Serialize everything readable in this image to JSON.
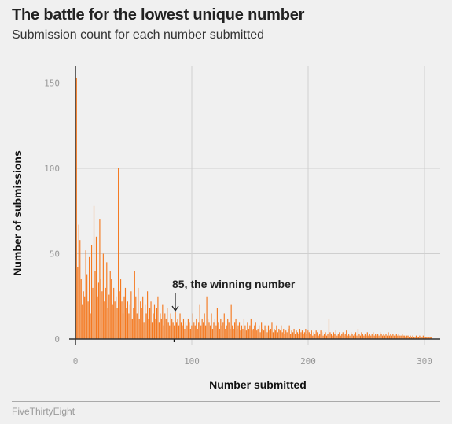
{
  "header": {
    "title": "The battle for the lowest unique number",
    "subtitle": "Submission count for each number submitted"
  },
  "footer": {
    "source": "FiveThirtyEight"
  },
  "colors": {
    "bar": "#f47920",
    "grid": "#cfcfcf",
    "highlight": "#111111"
  },
  "chart_data": {
    "type": "bar",
    "title": "The battle for the lowest unique number",
    "subtitle": "Submission count for each number submitted",
    "xlabel": "Number submitted",
    "ylabel": "Number of submissions",
    "xlim": [
      0,
      310
    ],
    "ylim": [
      0,
      160
    ],
    "xticks": [
      0,
      100,
      200,
      300
    ],
    "xtick_labels": [
      "0",
      "100",
      "200",
      "300"
    ],
    "yticks": [
      0,
      50,
      100,
      150
    ],
    "ytick_labels": [
      "0",
      "50",
      "100",
      "150"
    ],
    "grid": true,
    "highlight": {
      "x": 85,
      "label": "85, the winning number"
    },
    "x_start": 1,
    "values": [
      153,
      42,
      67,
      58,
      35,
      20,
      28,
      25,
      52,
      38,
      22,
      48,
      15,
      55,
      30,
      78,
      40,
      60,
      25,
      33,
      70,
      35,
      28,
      50,
      22,
      30,
      45,
      18,
      26,
      40,
      35,
      20,
      30,
      22,
      25,
      18,
      100,
      28,
      35,
      22,
      15,
      25,
      30,
      18,
      22,
      15,
      20,
      28,
      12,
      18,
      40,
      25,
      15,
      30,
      12,
      22,
      18,
      25,
      10,
      20,
      15,
      28,
      12,
      18,
      22,
      10,
      15,
      20,
      12,
      18,
      25,
      10,
      15,
      12,
      20,
      8,
      15,
      12,
      18,
      10,
      8,
      15,
      12,
      10,
      8,
      16,
      10,
      12,
      8,
      15,
      10,
      8,
      12,
      6,
      10,
      8,
      12,
      10,
      6,
      8,
      15,
      10,
      8,
      12,
      6,
      10,
      20,
      8,
      12,
      10,
      15,
      8,
      25,
      12,
      10,
      8,
      15,
      6,
      10,
      12,
      8,
      18,
      10,
      6,
      12,
      8,
      10,
      15,
      6,
      8,
      12,
      10,
      6,
      20,
      8,
      6,
      10,
      12,
      6,
      8,
      10,
      5,
      8,
      6,
      12,
      8,
      5,
      10,
      6,
      8,
      12,
      5,
      6,
      8,
      10,
      5,
      6,
      8,
      4,
      10,
      6,
      5,
      8,
      6,
      4,
      8,
      5,
      6,
      10,
      4,
      6,
      5,
      8,
      4,
      6,
      5,
      8,
      4,
      6,
      3,
      5,
      4,
      6,
      8,
      3,
      5,
      4,
      6,
      3,
      5,
      4,
      3,
      6,
      4,
      5,
      3,
      4,
      6,
      3,
      5,
      4,
      3,
      5,
      2,
      4,
      3,
      5,
      4,
      2,
      3,
      5,
      4,
      2,
      3,
      4,
      2,
      3,
      12,
      4,
      3,
      2,
      4,
      3,
      5,
      2,
      3,
      4,
      2,
      3,
      4,
      2,
      3,
      5,
      2,
      3,
      2,
      4,
      3,
      2,
      3,
      4,
      2,
      6,
      3,
      2,
      4,
      3,
      2,
      3,
      2,
      4,
      2,
      3,
      2,
      3,
      4,
      2,
      3,
      2,
      3,
      2,
      4,
      3,
      2,
      3,
      2,
      3,
      2,
      4,
      2,
      3,
      2,
      3,
      2,
      2,
      3,
      2,
      3,
      2,
      2,
      3,
      2,
      2,
      1,
      2,
      2,
      1,
      2,
      1,
      2,
      1,
      1,
      2,
      1,
      1,
      2,
      1,
      1,
      2,
      1,
      1,
      1,
      1,
      1,
      1,
      1
    ]
  }
}
